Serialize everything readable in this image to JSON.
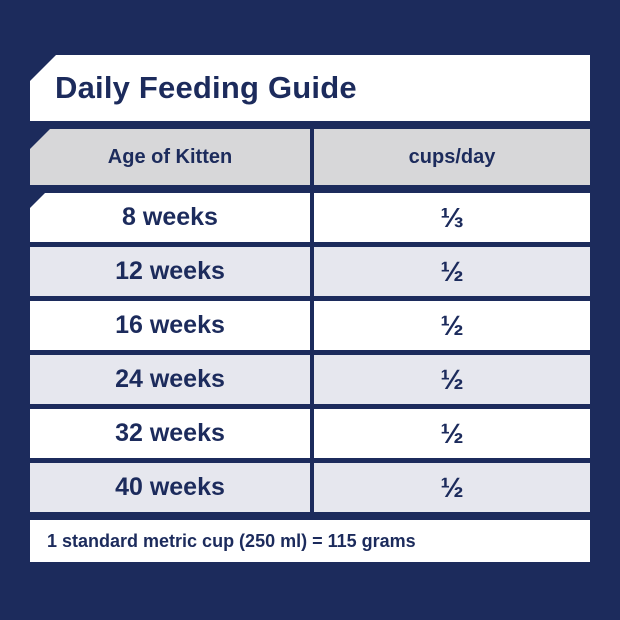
{
  "panel": {
    "title": "Daily Feeding Guide",
    "table": {
      "headers": {
        "age": "Age of Kitten",
        "cups": "cups/day"
      },
      "rows": [
        {
          "age": "8 weeks",
          "cups": "⅓"
        },
        {
          "age": "12 weeks",
          "cups": "½"
        },
        {
          "age": "16 weeks",
          "cups": "½"
        },
        {
          "age": "24 weeks",
          "cups": "½"
        },
        {
          "age": "32 weeks",
          "cups": "½"
        },
        {
          "age": "40 weeks",
          "cups": "½"
        }
      ]
    },
    "footnote": "1 standard metric cup (250 ml) = 115 grams"
  },
  "chart_data": {
    "type": "table",
    "title": "Daily Feeding Guide",
    "columns": [
      "Age of Kitten",
      "cups/day"
    ],
    "rows": [
      [
        "8 weeks",
        "1/3"
      ],
      [
        "12 weeks",
        "1/2"
      ],
      [
        "16 weeks",
        "1/2"
      ],
      [
        "24 weeks",
        "1/2"
      ],
      [
        "32 weeks",
        "1/2"
      ],
      [
        "40 weeks",
        "1/2"
      ]
    ],
    "note": "1 standard metric cup (250 ml) = 115 grams"
  },
  "colors": {
    "navy": "#1c2b5c",
    "header_gray": "#d7d7d9",
    "alt_row": "#e6e7ee",
    "white": "#ffffff"
  }
}
